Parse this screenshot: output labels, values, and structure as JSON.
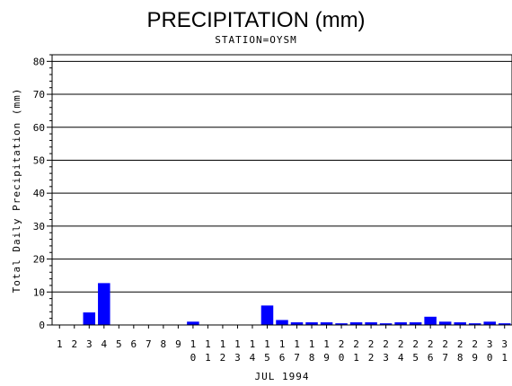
{
  "chart_data": {
    "type": "bar",
    "title": "PRECIPITATION (mm)",
    "subtitle": "STATION=OYSM",
    "xlabel": "JUL 1994",
    "ylabel": "Total Daily Precipitation (mm)",
    "ylim": [
      0,
      82
    ],
    "yticks": [
      0,
      10,
      20,
      30,
      40,
      50,
      60,
      70,
      80
    ],
    "grid": true,
    "bar_color": "#0000ff",
    "categories": [
      "1",
      "2",
      "3",
      "4",
      "5",
      "6",
      "7",
      "8",
      "9",
      "10",
      "11",
      "12",
      "13",
      "14",
      "15",
      "16",
      "17",
      "18",
      "19",
      "20",
      "21",
      "22",
      "23",
      "24",
      "25",
      "26",
      "27",
      "28",
      "29",
      "30",
      "31"
    ],
    "values": [
      0,
      0,
      3.8,
      12.7,
      0,
      0,
      0,
      0,
      0,
      1.0,
      0,
      0,
      0,
      0,
      5.9,
      1.5,
      0.8,
      0.8,
      0.8,
      0.5,
      0.8,
      0.8,
      0.5,
      0.8,
      0.8,
      2.5,
      1.0,
      0.8,
      0.5,
      1.0,
      0.5
    ]
  }
}
